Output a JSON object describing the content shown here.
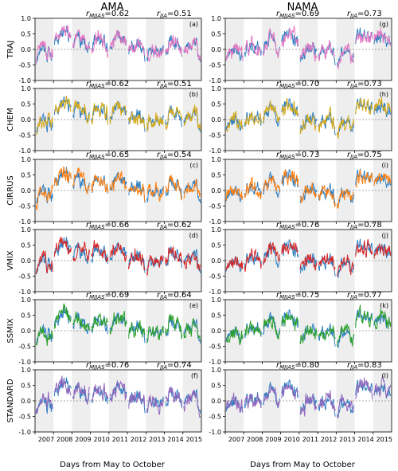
{
  "figure": {
    "column_titles": [
      "AMA",
      "NAMA"
    ],
    "xlabel": "Days from May to October",
    "tick_years": [
      "2007",
      "2008",
      "2009",
      "2010",
      "2011",
      "2012",
      "2013",
      "2014",
      "2015"
    ],
    "yticks": [
      "1.0",
      "0.5",
      "0.0",
      "-0.5",
      "-1.0"
    ],
    "ref_color": "#2f7fc1",
    "shade_color": "#eeeeee"
  },
  "chart_data": [
    {
      "type": "line",
      "panel": "(a)",
      "row": "TRAJ",
      "column": "AMA",
      "r_mjjas": "0.62",
      "r_jja": "0.51",
      "color": "#e377c2",
      "ylim": [
        -1,
        1
      ],
      "x": [
        2007,
        2016
      ]
    },
    {
      "type": "line",
      "panel": "(b)",
      "row": "CHEM",
      "column": "AMA",
      "r_mjjas": "0.62",
      "r_jja": "0.51",
      "color": "#d6aa1a",
      "ylim": [
        -1,
        1
      ],
      "x": [
        2007,
        2016
      ]
    },
    {
      "type": "line",
      "panel": "(c)",
      "row": "CIRRUS",
      "column": "AMA",
      "r_mjjas": "0.65",
      "r_jja": "0.54",
      "color": "#ff7f0e",
      "ylim": [
        -1,
        1
      ],
      "x": [
        2007,
        2016
      ]
    },
    {
      "type": "line",
      "panel": "(d)",
      "row": "VMIX",
      "column": "AMA",
      "r_mjjas": "0.66",
      "r_jja": "0.62",
      "color": "#d62728",
      "ylim": [
        -1,
        1
      ],
      "x": [
        2007,
        2016
      ]
    },
    {
      "type": "line",
      "panel": "(e)",
      "row": "SSMIX",
      "column": "AMA",
      "r_mjjas": "0.69",
      "r_jja": "0.64",
      "color": "#2ca02c",
      "ylim": [
        -1,
        1
      ],
      "x": [
        2007,
        2016
      ]
    },
    {
      "type": "line",
      "panel": "(f)",
      "row": "STANDARD",
      "column": "AMA",
      "r_mjjas": "0.76",
      "r_jja": "0.74",
      "color": "#9467bd",
      "ylim": [
        -1,
        1
      ],
      "x": [
        2007,
        2016
      ]
    },
    {
      "type": "line",
      "panel": "(g)",
      "row": "TRAJ",
      "column": "NAMA",
      "r_mjjas": "0.69",
      "r_jja": "0.73",
      "color": "#e377c2",
      "ylim": [
        -1,
        1
      ],
      "x": [
        2007,
        2016
      ]
    },
    {
      "type": "line",
      "panel": "(h)",
      "row": "CHEM",
      "column": "NAMA",
      "r_mjjas": "0.70",
      "r_jja": "0.73",
      "color": "#d6aa1a",
      "ylim": [
        -1,
        1
      ],
      "x": [
        2007,
        2016
      ]
    },
    {
      "type": "line",
      "panel": "(i)",
      "row": "CIRRUS",
      "column": "NAMA",
      "r_mjjas": "0.73",
      "r_jja": "0.75",
      "color": "#ff7f0e",
      "ylim": [
        -1,
        1
      ],
      "x": [
        2007,
        2016
      ]
    },
    {
      "type": "line",
      "panel": "(j)",
      "row": "VMIX",
      "column": "NAMA",
      "r_mjjas": "0.76",
      "r_jja": "0.78",
      "color": "#d62728",
      "ylim": [
        -1,
        1
      ],
      "x": [
        2007,
        2016
      ]
    },
    {
      "type": "line",
      "panel": "(k)",
      "row": "SSMIX",
      "column": "NAMA",
      "r_mjjas": "0.75",
      "r_jja": "0.77",
      "color": "#2ca02c",
      "ylim": [
        -1,
        1
      ],
      "x": [
        2007,
        2016
      ]
    },
    {
      "type": "line",
      "panel": "(l)",
      "row": "STANDARD",
      "column": "NAMA",
      "r_mjjas": "0.80",
      "r_jja": "0.83",
      "color": "#9467bd",
      "ylim": [
        -1,
        1
      ],
      "x": [
        2007,
        2016
      ]
    }
  ]
}
